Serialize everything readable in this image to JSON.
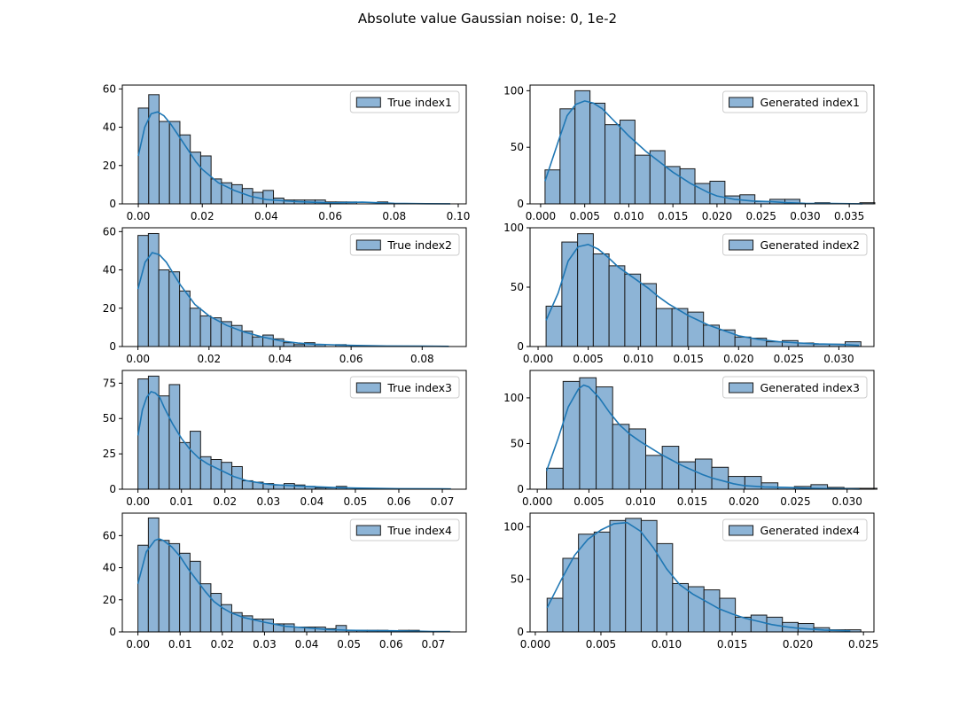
{
  "figure": {
    "title": "Absolute value Gaussian noise: 0, 1e-2"
  },
  "colors": {
    "fill": "#8db4d6",
    "edge": "#1a1a1a",
    "kde": "#1f77b4",
    "axis": "#000000"
  },
  "chart_data": [
    {
      "type": "bar",
      "subtype": "histogram_with_kde",
      "legend": "True index1",
      "legend_position": "top-right",
      "xlim": [
        -0.005,
        0.1025
      ],
      "ylim": [
        0,
        62
      ],
      "xticks": [
        0.0,
        0.02,
        0.04,
        0.06,
        0.08,
        0.1
      ],
      "xtick_labels": [
        "0.00",
        "0.02",
        "0.04",
        "0.06",
        "0.08",
        "0.10"
      ],
      "yticks": [
        0,
        20,
        40,
        60
      ],
      "ytick_labels": [
        "0",
        "20",
        "40",
        "60"
      ],
      "bin_start": 0.0,
      "bin_width": 0.00325,
      "counts": [
        50,
        57,
        43,
        43,
        36,
        27,
        25,
        13,
        11,
        10,
        8,
        6,
        7,
        3,
        2,
        2,
        2,
        2,
        1,
        1,
        1,
        0,
        0,
        1,
        0,
        0,
        0,
        0,
        0,
        0
      ],
      "kde": [
        [
          0.0,
          25
        ],
        [
          0.002,
          40
        ],
        [
          0.004,
          47
        ],
        [
          0.006,
          48
        ],
        [
          0.008,
          46
        ],
        [
          0.01,
          42
        ],
        [
          0.012,
          37
        ],
        [
          0.014,
          32
        ],
        [
          0.016,
          27
        ],
        [
          0.018,
          22
        ],
        [
          0.02,
          18
        ],
        [
          0.025,
          11
        ],
        [
          0.03,
          7
        ],
        [
          0.035,
          4
        ],
        [
          0.04,
          2.2
        ],
        [
          0.045,
          1.6
        ],
        [
          0.05,
          1.1
        ],
        [
          0.06,
          0.5
        ],
        [
          0.07,
          0.9
        ],
        [
          0.08,
          0.3
        ],
        [
          0.09,
          0.1
        ],
        [
          0.0975,
          0.05
        ]
      ]
    },
    {
      "type": "bar",
      "subtype": "histogram_with_kde",
      "legend": "Generated index1",
      "legend_position": "top-right",
      "xlim": [
        -0.0012,
        0.0378
      ],
      "ylim": [
        0,
        105
      ],
      "xticks": [
        0.0,
        0.005,
        0.01,
        0.015,
        0.02,
        0.025,
        0.03,
        0.035
      ],
      "xtick_labels": [
        "0.000",
        "0.005",
        "0.010",
        "0.015",
        "0.020",
        "0.025",
        "0.030",
        "0.035"
      ],
      "yticks": [
        0,
        50,
        100
      ],
      "ytick_labels": [
        "0",
        "50",
        "100"
      ],
      "bin_start": 0.0005,
      "bin_width": 0.0017,
      "counts": [
        30,
        84,
        100,
        89,
        70,
        74,
        43,
        47,
        33,
        31,
        18,
        20,
        7,
        8,
        2,
        4,
        4,
        0,
        1,
        0,
        0,
        1
      ],
      "kde": [
        [
          0.0005,
          20
        ],
        [
          0.002,
          55
        ],
        [
          0.003,
          78
        ],
        [
          0.004,
          88
        ],
        [
          0.005,
          91
        ],
        [
          0.006,
          89
        ],
        [
          0.007,
          84
        ],
        [
          0.008,
          76
        ],
        [
          0.009,
          68
        ],
        [
          0.01,
          60
        ],
        [
          0.011,
          53
        ],
        [
          0.012,
          46
        ],
        [
          0.013,
          40
        ],
        [
          0.014,
          34
        ],
        [
          0.015,
          28
        ],
        [
          0.016,
          23
        ],
        [
          0.017,
          18
        ],
        [
          0.018,
          14
        ],
        [
          0.019,
          10
        ],
        [
          0.02,
          7
        ],
        [
          0.022,
          4
        ],
        [
          0.024,
          2.5
        ],
        [
          0.026,
          2
        ],
        [
          0.028,
          1
        ],
        [
          0.03,
          0.5
        ],
        [
          0.033,
          0.3
        ],
        [
          0.0365,
          0.1
        ]
      ]
    },
    {
      "type": "bar",
      "subtype": "histogram_with_kde",
      "legend": "True index2",
      "legend_position": "top-right",
      "xlim": [
        -0.0044,
        0.0924
      ],
      "ylim": [
        0,
        62
      ],
      "xticks": [
        0.0,
        0.02,
        0.04,
        0.06,
        0.08
      ],
      "xtick_labels": [
        "0.00",
        "0.02",
        "0.04",
        "0.06",
        "0.08"
      ],
      "yticks": [
        0,
        20,
        40,
        60
      ],
      "ytick_labels": [
        "0",
        "20",
        "40",
        "60"
      ],
      "bin_start": 0.0,
      "bin_width": 0.00293,
      "counts": [
        58,
        59,
        40,
        39,
        29,
        20,
        16,
        15,
        13,
        11,
        8,
        5,
        6,
        4,
        2,
        1,
        2,
        1,
        0,
        1,
        0,
        0,
        0,
        0,
        0,
        0,
        0,
        0,
        0,
        0
      ],
      "kde": [
        [
          0.0,
          30
        ],
        [
          0.002,
          44
        ],
        [
          0.004,
          49
        ],
        [
          0.006,
          48
        ],
        [
          0.008,
          44
        ],
        [
          0.01,
          38
        ],
        [
          0.012,
          32
        ],
        [
          0.014,
          27
        ],
        [
          0.016,
          22
        ],
        [
          0.018,
          19
        ],
        [
          0.02,
          16
        ],
        [
          0.025,
          11
        ],
        [
          0.03,
          7.5
        ],
        [
          0.035,
          5
        ],
        [
          0.04,
          3
        ],
        [
          0.045,
          1.8
        ],
        [
          0.05,
          1.2
        ],
        [
          0.06,
          0.6
        ],
        [
          0.07,
          0.3
        ],
        [
          0.08,
          0.2
        ],
        [
          0.0875,
          0.1
        ]
      ]
    },
    {
      "type": "bar",
      "subtype": "histogram_with_kde",
      "legend": "Generated index2",
      "legend_position": "top-right",
      "xlim": [
        -0.0008,
        0.0335
      ],
      "ylim": [
        0,
        100
      ],
      "xticks": [
        0.0,
        0.005,
        0.01,
        0.015,
        0.02,
        0.025,
        0.03
      ],
      "xtick_labels": [
        "0.000",
        "0.005",
        "0.010",
        "0.015",
        "0.020",
        "0.025",
        "0.030"
      ],
      "yticks": [
        0,
        50,
        100
      ],
      "ytick_labels": [
        "0",
        "50",
        "100"
      ],
      "bin_start": 0.0008,
      "bin_width": 0.00157,
      "counts": [
        34,
        88,
        95,
        78,
        68,
        61,
        53,
        32,
        32,
        29,
        18,
        14,
        8,
        7,
        4,
        5,
        3,
        2,
        2,
        4
      ],
      "kde": [
        [
          0.0008,
          22
        ],
        [
          0.002,
          45
        ],
        [
          0.003,
          72
        ],
        [
          0.004,
          84
        ],
        [
          0.005,
          86
        ],
        [
          0.006,
          82
        ],
        [
          0.007,
          75
        ],
        [
          0.008,
          67
        ],
        [
          0.009,
          61
        ],
        [
          0.01,
          55
        ],
        [
          0.011,
          49
        ],
        [
          0.012,
          42
        ],
        [
          0.013,
          36
        ],
        [
          0.014,
          31
        ],
        [
          0.015,
          26
        ],
        [
          0.016,
          22
        ],
        [
          0.017,
          18
        ],
        [
          0.018,
          15
        ],
        [
          0.019,
          12
        ],
        [
          0.02,
          9
        ],
        [
          0.022,
          6
        ],
        [
          0.024,
          4
        ],
        [
          0.026,
          3
        ],
        [
          0.028,
          2.2
        ],
        [
          0.03,
          1.8
        ],
        [
          0.032,
          1
        ]
      ]
    },
    {
      "type": "bar",
      "subtype": "histogram_with_kde",
      "legend": "True index3",
      "legend_position": "top-right",
      "xlim": [
        -0.0036,
        0.0755
      ],
      "ylim": [
        0,
        84
      ],
      "xticks": [
        0.0,
        0.01,
        0.02,
        0.03,
        0.04,
        0.05,
        0.06,
        0.07
      ],
      "xtick_labels": [
        "0.00",
        "0.01",
        "0.02",
        "0.03",
        "0.04",
        "0.05",
        "0.06",
        "0.07"
      ],
      "yticks": [
        0,
        25,
        50,
        75
      ],
      "ytick_labels": [
        "0",
        "25",
        "50",
        "75"
      ],
      "bin_start": 0.0,
      "bin_width": 0.0024,
      "counts": [
        78,
        80,
        66,
        74,
        33,
        41,
        23,
        21,
        19,
        16,
        6,
        5,
        4,
        3,
        4,
        3,
        2,
        1,
        1,
        2,
        0,
        0,
        0,
        0,
        0,
        0,
        0,
        0,
        0,
        0
      ],
      "kde": [
        [
          0.0,
          38
        ],
        [
          0.001,
          56
        ],
        [
          0.002,
          65
        ],
        [
          0.003,
          69
        ],
        [
          0.004,
          68
        ],
        [
          0.005,
          65
        ],
        [
          0.006,
          58
        ],
        [
          0.008,
          46
        ],
        [
          0.01,
          36
        ],
        [
          0.012,
          28
        ],
        [
          0.014,
          22
        ],
        [
          0.016,
          18
        ],
        [
          0.018,
          15
        ],
        [
          0.02,
          12
        ],
        [
          0.022,
          9
        ],
        [
          0.025,
          6
        ],
        [
          0.03,
          3.5
        ],
        [
          0.035,
          2.5
        ],
        [
          0.04,
          1.8
        ],
        [
          0.045,
          1.2
        ],
        [
          0.05,
          0.8
        ],
        [
          0.06,
          0.4
        ],
        [
          0.07,
          0.3
        ],
        [
          0.072,
          0.2
        ]
      ]
    },
    {
      "type": "bar",
      "subtype": "histogram_with_kde",
      "legend": "Generated index3",
      "legend_position": "top-right",
      "xlim": [
        -0.0007,
        0.0326
      ],
      "ylim": [
        0,
        130
      ],
      "xticks": [
        0.0,
        0.005,
        0.01,
        0.015,
        0.02,
        0.025,
        0.03
      ],
      "xtick_labels": [
        "0.000",
        "0.005",
        "0.010",
        "0.015",
        "0.020",
        "0.025",
        "0.030"
      ],
      "yticks": [
        0,
        50,
        100
      ],
      "ytick_labels": [
        "0",
        "50",
        "100"
      ],
      "bin_start": 0.0009,
      "bin_width": 0.0016,
      "counts": [
        23,
        118,
        122,
        112,
        71,
        66,
        37,
        47,
        30,
        33,
        24,
        14,
        14,
        7,
        2,
        3,
        5,
        2,
        1,
        1
      ],
      "kde": [
        [
          0.0009,
          20
        ],
        [
          0.002,
          55
        ],
        [
          0.003,
          90
        ],
        [
          0.004,
          110
        ],
        [
          0.0045,
          114
        ],
        [
          0.005,
          112
        ],
        [
          0.006,
          100
        ],
        [
          0.007,
          84
        ],
        [
          0.008,
          70
        ],
        [
          0.009,
          60
        ],
        [
          0.01,
          52
        ],
        [
          0.011,
          45
        ],
        [
          0.012,
          38
        ],
        [
          0.013,
          32
        ],
        [
          0.014,
          26
        ],
        [
          0.015,
          21
        ],
        [
          0.016,
          16
        ],
        [
          0.017,
          12
        ],
        [
          0.018,
          9
        ],
        [
          0.019,
          6
        ],
        [
          0.02,
          4
        ],
        [
          0.022,
          2.5
        ],
        [
          0.024,
          2
        ],
        [
          0.026,
          1.2
        ],
        [
          0.028,
          0.7
        ],
        [
          0.0312,
          0.2
        ]
      ]
    },
    {
      "type": "bar",
      "subtype": "histogram_with_kde",
      "legend": "True index4",
      "legend_position": "top-right",
      "xlim": [
        -0.0037,
        0.0778
      ],
      "ylim": [
        0,
        74
      ],
      "xticks": [
        0.0,
        0.01,
        0.02,
        0.03,
        0.04,
        0.05,
        0.06,
        0.07
      ],
      "xtick_labels": [
        "0.00",
        "0.01",
        "0.02",
        "0.03",
        "0.04",
        "0.05",
        "0.06",
        "0.07"
      ],
      "yticks": [
        0,
        20,
        40,
        60
      ],
      "ytick_labels": [
        "0",
        "20",
        "40",
        "60"
      ],
      "bin_start": 0.0,
      "bin_width": 0.00247,
      "counts": [
        54,
        71,
        57,
        55,
        49,
        44,
        30,
        24,
        17,
        12,
        10,
        8,
        8,
        5,
        5,
        3,
        3,
        3,
        2,
        4,
        1,
        1,
        1,
        1,
        0,
        1,
        1,
        0,
        0,
        0
      ],
      "kde": [
        [
          0.0,
          30
        ],
        [
          0.002,
          50
        ],
        [
          0.004,
          57
        ],
        [
          0.005,
          58
        ],
        [
          0.006,
          57
        ],
        [
          0.008,
          53
        ],
        [
          0.01,
          47
        ],
        [
          0.012,
          39
        ],
        [
          0.014,
          32
        ],
        [
          0.016,
          25
        ],
        [
          0.018,
          19
        ],
        [
          0.02,
          15
        ],
        [
          0.022,
          12
        ],
        [
          0.025,
          9
        ],
        [
          0.03,
          6
        ],
        [
          0.035,
          3.5
        ],
        [
          0.04,
          2.5
        ],
        [
          0.045,
          1.5
        ],
        [
          0.05,
          1
        ],
        [
          0.055,
          0.8
        ],
        [
          0.06,
          0.7
        ],
        [
          0.065,
          0.5
        ],
        [
          0.07,
          0.3
        ],
        [
          0.074,
          0.2
        ]
      ]
    },
    {
      "type": "bar",
      "subtype": "histogram_with_kde",
      "legend": "Generated index4",
      "legend_position": "top-right",
      "xlim": [
        -0.0004,
        0.0258
      ],
      "ylim": [
        0,
        113
      ],
      "xticks": [
        0.0,
        0.005,
        0.01,
        0.015,
        0.02,
        0.025
      ],
      "xtick_labels": [
        "0.000",
        "0.005",
        "0.010",
        "0.015",
        "0.020",
        "0.025"
      ],
      "yticks": [
        0,
        50,
        100
      ],
      "ytick_labels": [
        "0",
        "50",
        "100"
      ],
      "bin_start": 0.0009,
      "bin_width": 0.001195,
      "counts": [
        32,
        70,
        93,
        95,
        106,
        108,
        106,
        84,
        46,
        43,
        40,
        32,
        14,
        16,
        14,
        9,
        8,
        4,
        2,
        2
      ],
      "kde": [
        [
          0.0009,
          23
        ],
        [
          0.002,
          50
        ],
        [
          0.003,
          73
        ],
        [
          0.004,
          88
        ],
        [
          0.005,
          97
        ],
        [
          0.006,
          103
        ],
        [
          0.007,
          104
        ],
        [
          0.008,
          96
        ],
        [
          0.009,
          80
        ],
        [
          0.01,
          60
        ],
        [
          0.011,
          45
        ],
        [
          0.012,
          36
        ],
        [
          0.013,
          29
        ],
        [
          0.014,
          22
        ],
        [
          0.015,
          17
        ],
        [
          0.016,
          13
        ],
        [
          0.017,
          10
        ],
        [
          0.018,
          7
        ],
        [
          0.019,
          5
        ],
        [
          0.02,
          3.5
        ],
        [
          0.022,
          1.8
        ],
        [
          0.024,
          1
        ]
      ]
    }
  ]
}
